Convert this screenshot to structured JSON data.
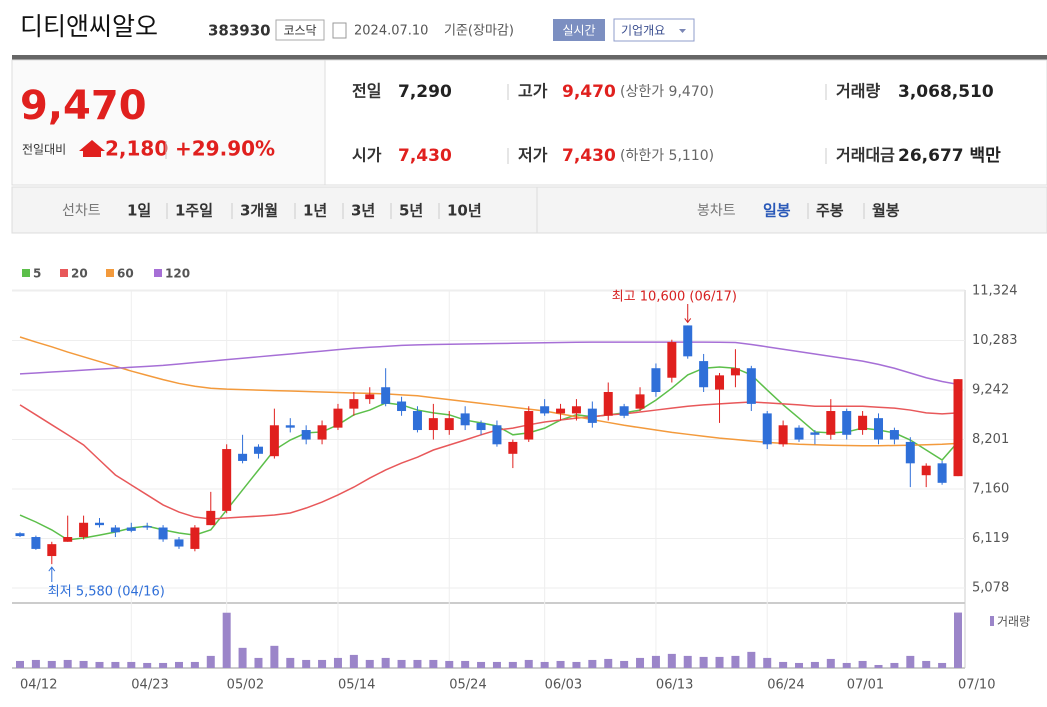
{
  "header": {
    "title": "디티앤씨알오",
    "code": "383930",
    "market": "코스닥",
    "date": "2024.07.10",
    "basis": "기준(장마감)",
    "buttons": [
      "실시간",
      "기업개요"
    ]
  },
  "price": {
    "current": "9,470",
    "change_label": "전일대비",
    "change": "2,180",
    "change_rate": "+29.90%"
  },
  "stats": [
    {
      "label": "전일",
      "value": "7,290"
    },
    {
      "label": "고가",
      "value": "9,470",
      "note": "(상한가 9,470)"
    },
    {
      "label": "거래량",
      "value": "3,068,510"
    },
    {
      "label": "시가",
      "value": "7,430"
    },
    {
      "label": "저가",
      "value": "7,430",
      "note": "(하한가 5,110)"
    },
    {
      "label": "거래대금",
      "value": "26,677 백만"
    }
  ],
  "tabs": {
    "line_label": "선차트",
    "line": [
      "1일",
      "1주일",
      "3개월",
      "1년",
      "3년",
      "5년",
      "10년"
    ],
    "candle_label": "봉차트",
    "candle": [
      "일봉",
      "주봉",
      "월봉"
    ]
  },
  "chart_data": {
    "type": "candlestick",
    "categories": [
      "04/12",
      null,
      null,
      null,
      null,
      null,
      null,
      "04/23",
      null,
      null,
      null,
      null,
      null,
      "05/02",
      null,
      null,
      null,
      null,
      null,
      null,
      "05/14",
      null,
      null,
      null,
      null,
      null,
      null,
      "05/24",
      null,
      null,
      null,
      null,
      null,
      "06/03",
      null,
      null,
      null,
      null,
      null,
      null,
      "06/13",
      null,
      null,
      null,
      null,
      null,
      null,
      "06/24",
      null,
      null,
      null,
      null,
      "07/01",
      null,
      null,
      null,
      null,
      null,
      null,
      "07/10"
    ],
    "open": [
      6230,
      6150,
      5750,
      6050,
      6150,
      6450,
      6350,
      6350,
      6380,
      6350,
      6100,
      5900,
      6400,
      6700,
      7900,
      8050,
      7850,
      8500,
      8400,
      8200,
      8450,
      8850,
      9050,
      9300,
      9000,
      8800,
      8400,
      8400,
      8750,
      8550,
      8500,
      7900,
      8200,
      8900,
      8750,
      8750,
      8850,
      8700,
      8900,
      8850,
      9700,
      9500,
      10600,
      9850,
      9250,
      9550,
      9700,
      8750,
      8100,
      8450,
      8350,
      8300,
      8800,
      8400,
      8650,
      8400,
      8150,
      7450,
      7700,
      7430
    ],
    "high": [
      6250,
      6180,
      6050,
      6600,
      6600,
      6550,
      6400,
      6450,
      6450,
      6400,
      6150,
      6400,
      7100,
      8100,
      8300,
      8100,
      8850,
      8650,
      8500,
      8600,
      8950,
      9200,
      9300,
      9700,
      9100,
      8900,
      8950,
      8800,
      8900,
      8600,
      8600,
      8200,
      8900,
      9050,
      8950,
      9050,
      9000,
      9400,
      8950,
      9300,
      9800,
      10300,
      10600,
      10000,
      9600,
      10100,
      9750,
      8800,
      8600,
      8500,
      8400,
      9050,
      8850,
      8800,
      8750,
      8450,
      8250,
      7700,
      7750,
      9470
    ],
    "low": [
      6150,
      5880,
      5580,
      6050,
      6100,
      6350,
      6150,
      6250,
      6300,
      6050,
      5900,
      5850,
      6400,
      6650,
      7700,
      7800,
      7800,
      8350,
      8100,
      8100,
      8400,
      8700,
      8950,
      8900,
      8700,
      8350,
      8200,
      8300,
      8400,
      8300,
      8050,
      7600,
      8150,
      8700,
      8600,
      8600,
      8450,
      8600,
      8650,
      8800,
      9100,
      9400,
      9900,
      9200,
      8550,
      9300,
      8800,
      8000,
      8050,
      8150,
      8100,
      8200,
      8200,
      8300,
      8100,
      8100,
      7200,
      7200,
      7250,
      7430
    ],
    "close": [
      6170,
      5900,
      6000,
      6150,
      6450,
      6400,
      6250,
      6280,
      6350,
      6100,
      5950,
      6350,
      6700,
      8000,
      7750,
      7900,
      8500,
      8450,
      8200,
      8500,
      8850,
      9050,
      9150,
      8950,
      8800,
      8400,
      8650,
      8650,
      8500,
      8400,
      8100,
      8150,
      8800,
      8750,
      8850,
      8900,
      8550,
      9200,
      8700,
      9150,
      9200,
      10250,
      9950,
      9300,
      9550,
      9700,
      8950,
      8100,
      8500,
      8200,
      8300,
      8800,
      8300,
      8700,
      8200,
      8200,
      7700,
      7650,
      7290,
      9470
    ],
    "volume": [
      390000,
      446000,
      390000,
      446000,
      390000,
      335000,
      335000,
      335000,
      279000,
      279000,
      335000,
      335000,
      670000,
      3060000,
      1116000,
      558000,
      1227000,
      558000,
      446000,
      446000,
      558000,
      725000,
      446000,
      558000,
      446000,
      446000,
      446000,
      390000,
      390000,
      335000,
      335000,
      335000,
      446000,
      335000,
      390000,
      335000,
      446000,
      502000,
      390000,
      558000,
      670000,
      781000,
      670000,
      614000,
      614000,
      670000,
      893000,
      558000,
      335000,
      279000,
      335000,
      502000,
      279000,
      390000,
      167000,
      279000,
      670000,
      390000,
      279000,
      3068510
    ],
    "volume_lim": [
      0,
      3100000
    ],
    "volume_label": "거래량",
    "volume_color": "#9b85c9",
    "up_color": "#e0201e",
    "down_color": "#2f6fd8",
    "ma": [
      {
        "name": "5",
        "color": "#5cbf4a",
        "values": [
          6613,
          6466,
          6300,
          6090,
          6130,
          6190,
          6255,
          6340,
          6380,
          6300,
          6235,
          6190,
          6300,
          6720,
          7140,
          7560,
          7980,
          8190,
          8340,
          8360,
          8510,
          8720,
          8820,
          8970,
          8930,
          8820,
          8760,
          8720,
          8610,
          8550,
          8485,
          8300,
          8340,
          8440,
          8610,
          8720,
          8680,
          8720,
          8760,
          8820,
          9030,
          9280,
          9560,
          9700,
          9725,
          9700,
          9560,
          9240,
          8930,
          8650,
          8360,
          8340,
          8360,
          8440,
          8400,
          8340,
          8190,
          7980,
          7770,
          8150
        ]
      },
      {
        "name": "20",
        "color": "#e8585a",
        "values": [
          8930,
          8720,
          8510,
          8300,
          8085,
          7770,
          7455,
          7245,
          7035,
          6825,
          6675,
          6570,
          6530,
          6550,
          6570,
          6590,
          6613,
          6655,
          6760,
          6885,
          7035,
          7200,
          7390,
          7560,
          7705,
          7830,
          7980,
          8085,
          8190,
          8300,
          8400,
          8440,
          8510,
          8570,
          8610,
          8650,
          8680,
          8720,
          8740,
          8780,
          8820,
          8860,
          8900,
          8930,
          8950,
          8970,
          8990,
          8970,
          8950,
          8930,
          8900,
          8900,
          8900,
          8900,
          8880,
          8860,
          8820,
          8760,
          8740,
          8760
        ]
      },
      {
        "name": "60",
        "color": "#f39a3c",
        "values": [
          10357,
          10250,
          10150,
          10040,
          9940,
          9840,
          9740,
          9640,
          9550,
          9460,
          9380,
          9320,
          9280,
          9260,
          9250,
          9240,
          9230,
          9220,
          9210,
          9200,
          9190,
          9180,
          9170,
          9160,
          9140,
          9120,
          9080,
          9040,
          9000,
          8960,
          8920,
          8880,
          8840,
          8800,
          8740,
          8680,
          8620,
          8560,
          8500,
          8450,
          8400,
          8350,
          8310,
          8270,
          8230,
          8200,
          8170,
          8140,
          8120,
          8100,
          8090,
          8080,
          8075,
          8070,
          8070,
          8075,
          8080,
          8090,
          8100,
          8120
        ]
      },
      {
        "name": "120",
        "color": "#a66fd6",
        "values": [
          9580,
          9600,
          9620,
          9640,
          9660,
          9680,
          9700,
          9720,
          9740,
          9760,
          9790,
          9820,
          9850,
          9880,
          9910,
          9940,
          9970,
          10000,
          10030,
          10060,
          10090,
          10120,
          10140,
          10160,
          10180,
          10190,
          10200,
          10205,
          10210,
          10215,
          10220,
          10225,
          10230,
          10235,
          10240,
          10245,
          10250,
          10250,
          10250,
          10250,
          10250,
          10250,
          10250,
          10250,
          10245,
          10240,
          10200,
          10150,
          10100,
          10050,
          10000,
          9950,
          9900,
          9850,
          9780,
          9700,
          9600,
          9500,
          9420,
          9360
        ]
      }
    ],
    "ylim": [
      5078,
      11324
    ],
    "yticks": [
      {
        "value": 5078,
        "label": "5,078"
      },
      {
        "value": 6119,
        "label": "6,119"
      },
      {
        "value": 7160,
        "label": "7,160"
      },
      {
        "value": 8201,
        "label": "8,201"
      },
      {
        "value": 9242,
        "label": "9,242"
      },
      {
        "value": 10283,
        "label": "10,283"
      },
      {
        "value": 11324,
        "label": "11,324"
      }
    ],
    "high_label": "최고 10,600 (06/17)",
    "low_label": "최저 5,580 (04/16)",
    "grid": true
  }
}
